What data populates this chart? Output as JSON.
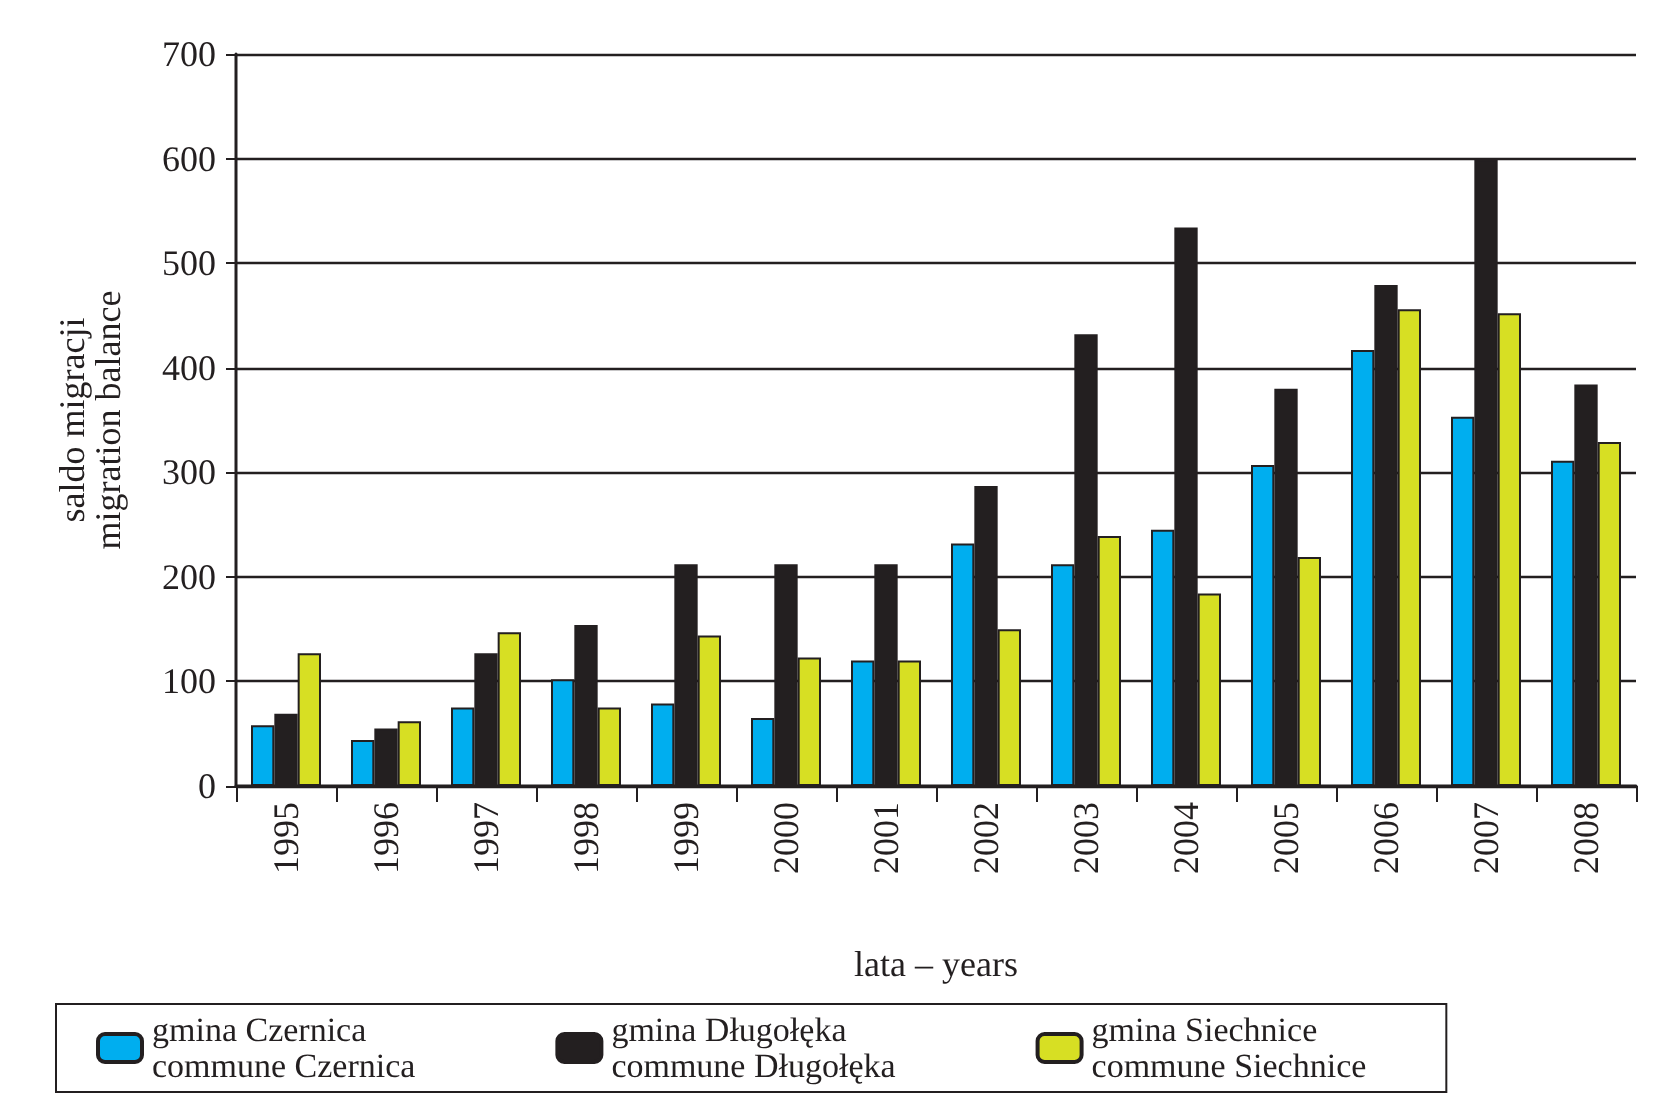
{
  "chart_data": {
    "type": "bar",
    "xlabel": "lata – years",
    "ylabel": "saldo migracji\nmigration balance",
    "categories": [
      "1995",
      "1996",
      "1997",
      "1998",
      "1999",
      "2000",
      "2001",
      "2002",
      "2003",
      "2004",
      "2005",
      "2006",
      "2007",
      "2008"
    ],
    "series": [
      {
        "name": "gmina Czernica\ncommune Czernica",
        "color": "#00aeef",
        "values": [
          58,
          44,
          75,
          102,
          79,
          65,
          120,
          232,
          212,
          245,
          307,
          417,
          353,
          311
        ]
      },
      {
        "name": "gmina Długołęka\ncommune Długołęka",
        "color": "#231f20",
        "values": [
          69,
          55,
          127,
          154,
          212,
          212,
          212,
          287,
          432,
          534,
          380,
          479,
          599,
          384
        ]
      },
      {
        "name": "gmina Siechnice\ncommune Siechnice",
        "color": "#d7df23",
        "values": [
          127,
          62,
          147,
          75,
          144,
          123,
          120,
          150,
          239,
          184,
          219,
          456,
          452,
          329
        ]
      }
    ],
    "ylim": [
      0,
      700
    ],
    "yticks": [
      0,
      100,
      200,
      300,
      400,
      500,
      600,
      700
    ],
    "grid": "y",
    "legend": "bottom"
  }
}
